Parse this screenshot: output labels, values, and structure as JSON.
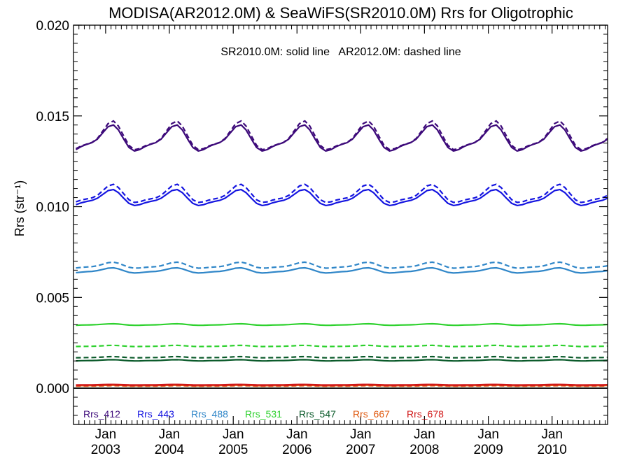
{
  "chart_data": {
    "type": "line",
    "title": "MODISA(AR2012.0M) & SeaWiFS(SR2010.0M)  Rrs for Oligotrophic",
    "annotation": "SR2010.0M: solid line   AR2012.0M: dashed line",
    "ylabel": "Rrs (str⁻¹)",
    "xlabel": "",
    "ylim": [
      -0.002,
      0.02
    ],
    "xlim": [
      "2002-07-01",
      "2010-11-15"
    ],
    "y_ticks": [
      0.0,
      0.005,
      0.01,
      0.015,
      0.02
    ],
    "y_tick_labels": [
      "0.000",
      "0.005",
      "0.010",
      "0.015",
      "0.020"
    ],
    "x_ticks": [
      {
        "month": "Jan",
        "year": "2003",
        "date": "2003-01-01"
      },
      {
        "month": "Jan",
        "year": "2004",
        "date": "2004-01-01"
      },
      {
        "month": "Jan",
        "year": "2005",
        "date": "2005-01-01"
      },
      {
        "month": "Jan",
        "year": "2006",
        "date": "2006-01-01"
      },
      {
        "month": "Jan",
        "year": "2007",
        "date": "2007-01-01"
      },
      {
        "month": "Jan",
        "year": "2008",
        "date": "2008-01-01"
      },
      {
        "month": "Jan",
        "year": "2009",
        "date": "2009-01-01"
      },
      {
        "month": "Jan",
        "year": "2010",
        "date": "2010-01-01"
      }
    ],
    "zero_line": 0.0,
    "grid": false,
    "legend_position": "bottom-left",
    "series": [
      {
        "name": "Rrs_412",
        "color": "#3d0a7a",
        "solid": {
          "mean": 0.0137,
          "amp": 0.00085
        },
        "dashed": {
          "mean": 0.0138,
          "amp": 0.00095
        }
      },
      {
        "name": "Rrs_443",
        "color": "#1414e0",
        "solid": {
          "mean": 0.01045,
          "amp": 0.00052
        },
        "dashed": {
          "mean": 0.01065,
          "amp": 0.0006
        }
      },
      {
        "name": "Rrs_488",
        "color": "#2f86c8",
        "solid": {
          "mean": 0.00647,
          "amp": 0.00017
        },
        "dashed": {
          "mean": 0.00675,
          "amp": 0.0002
        }
      },
      {
        "name": "Rrs_531",
        "color": "#2ed12e",
        "solid": {
          "mean": 0.0035,
          "amp": 5e-05
        },
        "dashed": {
          "mean": 0.00232,
          "amp": 4e-05
        }
      },
      {
        "name": "Rrs_547",
        "color": "#0a5a2a",
        "solid": {
          "mean": 0.00153,
          "amp": 4e-05
        },
        "dashed": {
          "mean": 0.0017,
          "amp": 4e-05
        }
      },
      {
        "name": "Rrs_667",
        "color": "#e05a10",
        "solid": {
          "mean": 0.00015,
          "amp": 2e-05
        },
        "dashed": {
          "mean": 0.00012,
          "amp": 2e-05
        }
      },
      {
        "name": "Rrs_678",
        "color": "#d01818",
        "solid": {
          "mean": 0.00019,
          "amp": 2e-05
        },
        "dashed": {
          "mean": 0.00016,
          "amp": 2e-05
        }
      }
    ]
  }
}
